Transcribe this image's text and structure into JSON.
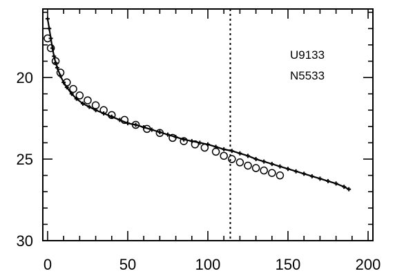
{
  "chart_data": {
    "type": "scatter",
    "title": "",
    "xlabel": "",
    "ylabel": "",
    "xlim": [
      -3,
      203
    ],
    "ylim": [
      30,
      15.8
    ],
    "y_inverted": true,
    "x_ticks": [
      0,
      50,
      100,
      150,
      200
    ],
    "y_ticks": [
      20,
      25,
      30
    ],
    "grid": false,
    "legend": {
      "placement": "top-right",
      "entries": [
        "U9133",
        "N5533"
      ]
    },
    "annotations": [
      {
        "type": "vertical-dotted-line",
        "x": 114
      }
    ],
    "series": [
      {
        "name": "U9133",
        "marker": "cross",
        "x": [
          0,
          1,
          2,
          3,
          4,
          5,
          6,
          8,
          10,
          12,
          15,
          18,
          22,
          26,
          30,
          35,
          40,
          45,
          50,
          55,
          60,
          65,
          70,
          75,
          80,
          85,
          90,
          95,
          100,
          105,
          110,
          115,
          120,
          125,
          130,
          135,
          140,
          145,
          150,
          155,
          160,
          165,
          170,
          175,
          180,
          185,
          188
        ],
        "values": [
          16.4,
          17.0,
          17.6,
          18.2,
          18.7,
          19.1,
          19.4,
          19.9,
          20.3,
          20.6,
          21.0,
          21.3,
          21.6,
          21.8,
          22.0,
          22.2,
          22.4,
          22.6,
          22.8,
          22.9,
          23.05,
          23.2,
          23.35,
          23.5,
          23.65,
          23.8,
          23.9,
          24.0,
          24.1,
          24.25,
          24.4,
          24.5,
          24.65,
          24.8,
          25.0,
          25.15,
          25.3,
          25.45,
          25.6,
          25.75,
          25.9,
          26.05,
          26.2,
          26.35,
          26.5,
          26.7,
          26.85
        ]
      },
      {
        "name": "N5533",
        "marker": "circle",
        "x": [
          0,
          2,
          5,
          8,
          12,
          16,
          20,
          25,
          30,
          35,
          40,
          48,
          55,
          62,
          70,
          78,
          85,
          92,
          98,
          105,
          110,
          115,
          120,
          125,
          130,
          135,
          140,
          145
        ],
        "values": [
          17.6,
          18.2,
          19.0,
          19.7,
          20.3,
          20.7,
          21.1,
          21.4,
          21.7,
          22.0,
          22.3,
          22.6,
          22.9,
          23.15,
          23.4,
          23.7,
          23.9,
          24.1,
          24.3,
          24.55,
          24.8,
          25.0,
          25.2,
          25.4,
          25.55,
          25.7,
          25.85,
          26.0
        ]
      }
    ]
  }
}
